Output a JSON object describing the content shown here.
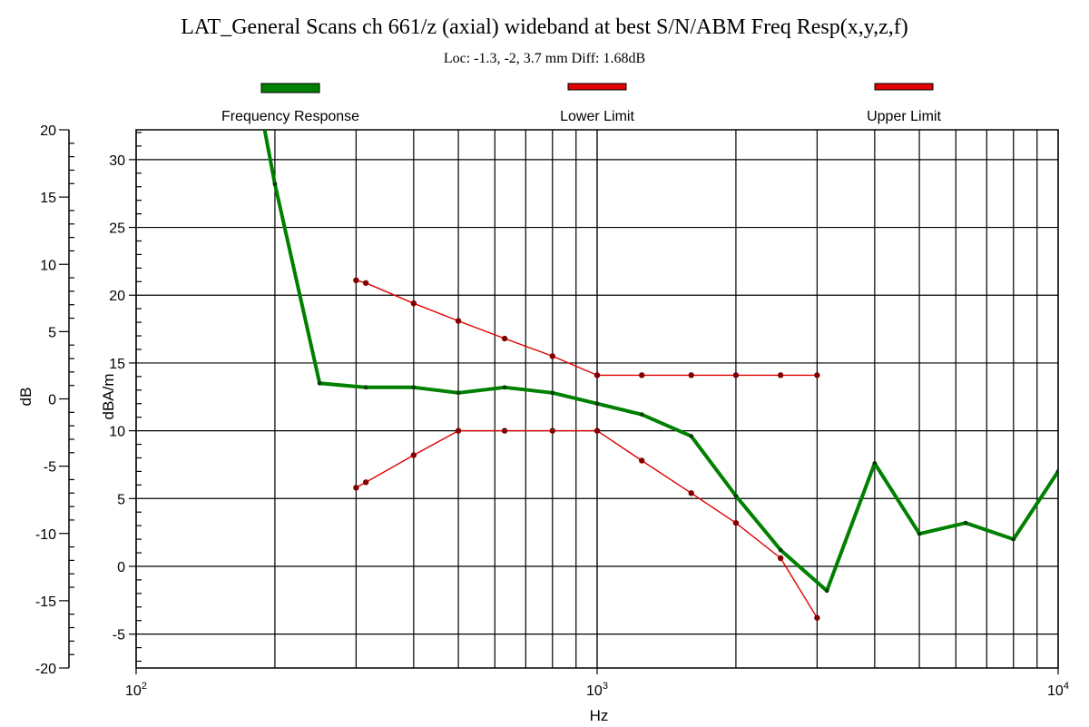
{
  "chart_data": {
    "type": "line",
    "title": "LAT_General Scans ch 661/z (axial) wideband at best S/N/ABM Freq Resp(x,y,z,f)",
    "subtitle": "Loc: -1.3, -2, 3.7 mm Diff: 1.68dB",
    "xlabel": "Hz",
    "ylabel_left": "dB",
    "ylabel_right": "dBA/m",
    "x_scale": "log",
    "xlim": [
      100,
      10000
    ],
    "x_ticks": [
      {
        "base": "10",
        "exp": "2"
      },
      {
        "base": "10",
        "exp": "3"
      },
      {
        "base": "10",
        "exp": "4"
      }
    ],
    "y_left": {
      "lim": [
        -20,
        20
      ],
      "ticks": [
        "20",
        "15",
        "10",
        "5",
        "0",
        "-5",
        "-10",
        "-15",
        "-20"
      ]
    },
    "y_right": {
      "lim": [
        -7.5,
        32.2
      ],
      "ticks": [
        "30",
        "25",
        "20",
        "15",
        "10",
        "5",
        "0",
        "-5"
      ]
    },
    "grid": true,
    "legend_position": "top",
    "series": [
      {
        "name": "Frequency Response",
        "color": "#008000",
        "axis": "right",
        "points": [
          [
            190,
            32.2
          ],
          [
            200,
            28.2
          ],
          [
            250,
            13.5
          ],
          [
            315,
            13.2
          ],
          [
            400,
            13.2
          ],
          [
            500,
            12.8
          ],
          [
            630,
            13.2
          ],
          [
            800,
            12.8
          ],
          [
            1000,
            12.0
          ],
          [
            1250,
            11.2
          ],
          [
            1600,
            9.6
          ],
          [
            2000,
            5.2
          ],
          [
            2500,
            1.2
          ],
          [
            3150,
            -1.8
          ],
          [
            4000,
            7.6
          ],
          [
            5000,
            2.4
          ],
          [
            6300,
            3.2
          ],
          [
            8000,
            2.0
          ],
          [
            10000,
            7.0
          ]
        ]
      },
      {
        "name": "Lower Limit",
        "color": "#e00000",
        "axis": "right",
        "points": [
          [
            300,
            5.8
          ],
          [
            315,
            6.2
          ],
          [
            400,
            8.2
          ],
          [
            500,
            10.0
          ],
          [
            630,
            10.0
          ],
          [
            800,
            10.0
          ],
          [
            1000,
            10.0
          ],
          [
            1250,
            7.8
          ],
          [
            1600,
            5.4
          ],
          [
            2000,
            3.2
          ],
          [
            2500,
            0.6
          ],
          [
            3000,
            -3.8
          ]
        ]
      },
      {
        "name": "Upper Limit",
        "color": "#e00000",
        "axis": "right",
        "points": [
          [
            300,
            21.1
          ],
          [
            315,
            20.9
          ],
          [
            400,
            19.4
          ],
          [
            500,
            18.1
          ],
          [
            630,
            16.8
          ],
          [
            800,
            15.5
          ],
          [
            1000,
            14.1
          ],
          [
            1250,
            14.1
          ],
          [
            1600,
            14.1
          ],
          [
            2000,
            14.1
          ],
          [
            2500,
            14.1
          ],
          [
            3000,
            14.1
          ]
        ]
      }
    ]
  }
}
